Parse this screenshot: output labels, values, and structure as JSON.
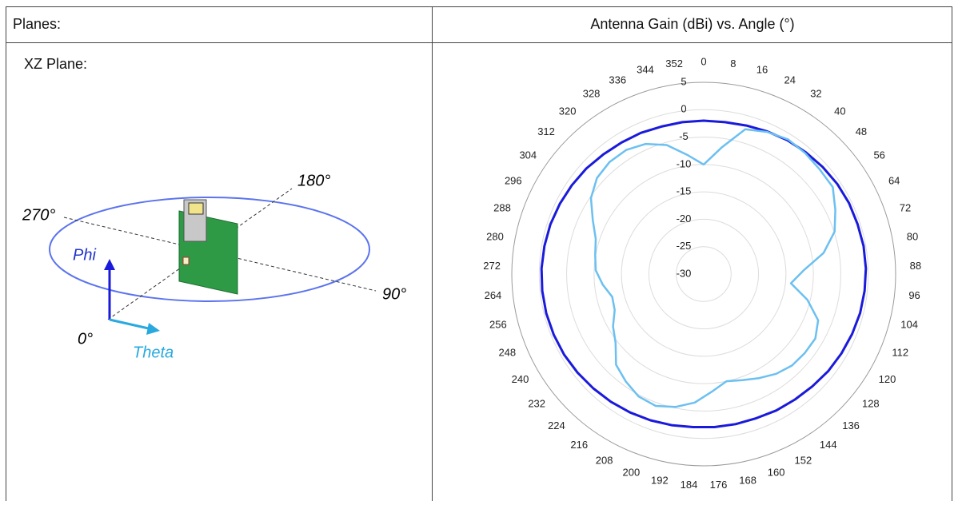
{
  "table": {
    "header": [
      "Planes:",
      "Antenna Gain (dBi) vs. Angle (°)"
    ],
    "rows": [
      [
        "XZ Plane:"
      ]
    ]
  },
  "diagram": {
    "labels": [
      "180°",
      "270°",
      "90°",
      "0°",
      "Phi",
      "Theta"
    ]
  },
  "chart_data": {
    "type": "polar",
    "x": [
      0,
      8,
      16,
      24,
      32,
      40,
      48,
      56,
      64,
      72,
      80,
      88,
      96,
      104,
      112,
      120,
      128,
      136,
      144,
      152,
      160,
      168,
      176,
      184,
      192,
      200,
      208,
      216,
      224,
      232,
      240,
      248,
      256,
      264,
      272,
      280,
      288,
      296,
      304,
      312,
      320,
      328,
      336,
      344,
      352
    ],
    "ylim": [
      -30,
      5
    ],
    "yticks": [
      5,
      0,
      -5,
      -10,
      -15,
      -20,
      -25,
      -30
    ],
    "grid": true,
    "series": [
      {
        "color": "#1a1adb",
        "values": [
          -2,
          -2,
          -1.8,
          -1.5,
          -1.2,
          -1,
          -0.8,
          -0.6,
          -0.5,
          -0.5,
          -0.4,
          -0.4,
          -0.5,
          -0.6,
          -0.8,
          -1,
          -1.2,
          -1.5,
          -1.7,
          -1.8,
          -2,
          -2,
          -2,
          -2,
          -1.8,
          -1.6,
          -1.4,
          -1.2,
          -1,
          -0.8,
          -0.6,
          -0.5,
          -0.4,
          -0.4,
          -0.4,
          -0.5,
          -0.6,
          -0.8,
          -1,
          -1.2,
          -1.5,
          -1.7,
          -1.8,
          -2,
          -2
        ]
      },
      {
        "color": "#6cc0f0",
        "values": [
          -10,
          -6.7,
          -2.5,
          -1.6,
          -1,
          -1.2,
          -1.5,
          -1.6,
          -3.3,
          -4.9,
          -7.8,
          -11.8,
          -14,
          -10.5,
          -7.5,
          -6.5,
          -6.6,
          -6.8,
          -7.5,
          -8.5,
          -9.4,
          -10,
          -8.5,
          -6.5,
          -5.2,
          -4.4,
          -4.7,
          -5.8,
          -7,
          -9.6,
          -10.9,
          -12.5,
          -12.8,
          -11.5,
          -10.3,
          -9.9,
          -9.3,
          -7.5,
          -5.2,
          -3.8,
          -3.3,
          -3.3,
          -4,
          -5.5,
          -8
        ]
      }
    ]
  }
}
